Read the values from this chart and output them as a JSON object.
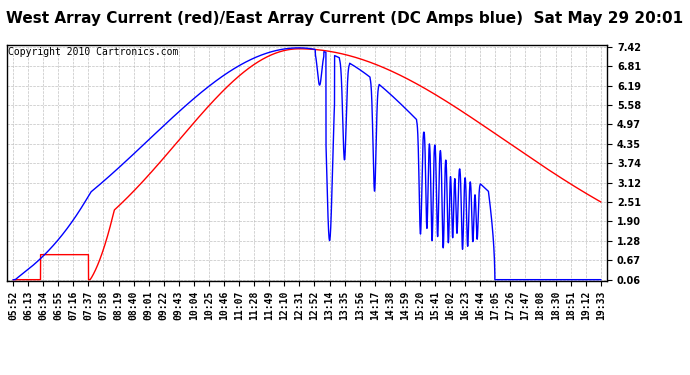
{
  "title": "West Array Current (red)/East Array Current (DC Amps blue)  Sat May 29 20:01",
  "copyright": "Copyright 2010 Cartronics.com",
  "background_color": "#ffffff",
  "plot_bg_color": "#ffffff",
  "grid_color": "#bbbbbb",
  "red_color": "#ff0000",
  "blue_color": "#0000ff",
  "ylim_min": 0.06,
  "ylim_max": 7.42,
  "yticks": [
    0.06,
    0.67,
    1.28,
    1.9,
    2.51,
    3.12,
    3.74,
    4.35,
    4.97,
    5.58,
    6.19,
    6.81,
    7.42
  ],
  "time_labels": [
    "05:52",
    "06:13",
    "06:34",
    "06:55",
    "07:16",
    "07:37",
    "07:58",
    "08:19",
    "08:40",
    "09:01",
    "09:22",
    "09:43",
    "10:04",
    "10:25",
    "10:46",
    "11:07",
    "11:28",
    "11:49",
    "12:10",
    "12:31",
    "12:52",
    "13:14",
    "13:35",
    "13:56",
    "14:17",
    "14:38",
    "14:59",
    "15:20",
    "15:41",
    "16:02",
    "16:23",
    "16:44",
    "17:05",
    "17:26",
    "17:47",
    "18:08",
    "18:30",
    "18:51",
    "19:12",
    "19:33"
  ],
  "title_fontsize": 11,
  "tick_fontsize": 7,
  "copyright_fontsize": 7,
  "linewidth": 1.0
}
